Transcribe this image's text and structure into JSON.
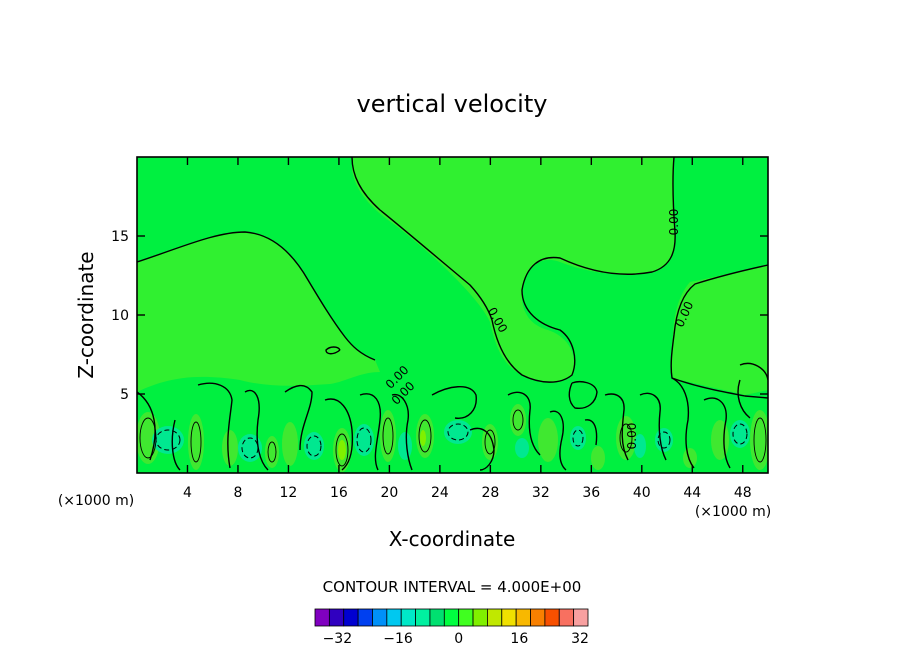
{
  "chart_data": {
    "type": "contour",
    "title": "vertical velocity",
    "xlabel": "X-coordinate",
    "ylabel": "Z-coordinate",
    "x_unit": "(×1000 m)",
    "y_unit": "(×1000 m)",
    "xlim": [
      0,
      50
    ],
    "ylim": [
      0,
      20
    ],
    "x_ticks": [
      4,
      8,
      12,
      16,
      20,
      24,
      28,
      32,
      36,
      40,
      44,
      48
    ],
    "y_ticks": [
      5,
      10,
      15
    ],
    "contour_labels": [
      "0.00",
      "0.00",
      "0.00",
      "0.00",
      "0.00",
      "0.00"
    ],
    "contour_interval_text": "CONTOUR INTERVAL = 4.000E+00",
    "colorbar": {
      "levels": [
        -36,
        -32,
        -28,
        -24,
        -20,
        -16,
        -12,
        -8,
        -4,
        0,
        4,
        8,
        12,
        16,
        20,
        24,
        28,
        32,
        36
      ],
      "tick_values": [
        -32,
        -16,
        0,
        16,
        32
      ],
      "tick_labels": [
        "−32",
        "−16",
        "0",
        "16",
        "32"
      ],
      "colors": [
        "#8000c0",
        "#3000c0",
        "#0000d0",
        "#0040f0",
        "#0090f8",
        "#00c8f0",
        "#00e8c8",
        "#00f0a0",
        "#00e070",
        "#00ff40",
        "#40ff20",
        "#80f000",
        "#c0e800",
        "#f0e000",
        "#f8b800",
        "#f88000",
        "#f85000",
        "#f87060",
        "#f8a0a0"
      ]
    },
    "grid": false,
    "legend": "colorbar bottom"
  }
}
